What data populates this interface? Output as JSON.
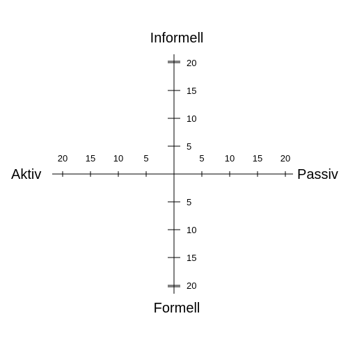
{
  "axes": {
    "top_label": "Informell",
    "bottom_label": "Formell",
    "left_label": "Aktiv",
    "right_label": "Passiv"
  },
  "chart_data": {
    "type": "quadrant-axes",
    "x_range": [
      -20,
      20
    ],
    "y_range": [
      -20,
      20
    ],
    "tick_step": 5,
    "left_ticks": [
      "20",
      "15",
      "10",
      "5"
    ],
    "right_ticks": [
      "5",
      "10",
      "15",
      "20"
    ],
    "top_ticks": [
      "5",
      "10",
      "15",
      "20"
    ],
    "bottom_ticks": [
      "5",
      "10",
      "15",
      "20"
    ],
    "line_color": "#000000"
  }
}
